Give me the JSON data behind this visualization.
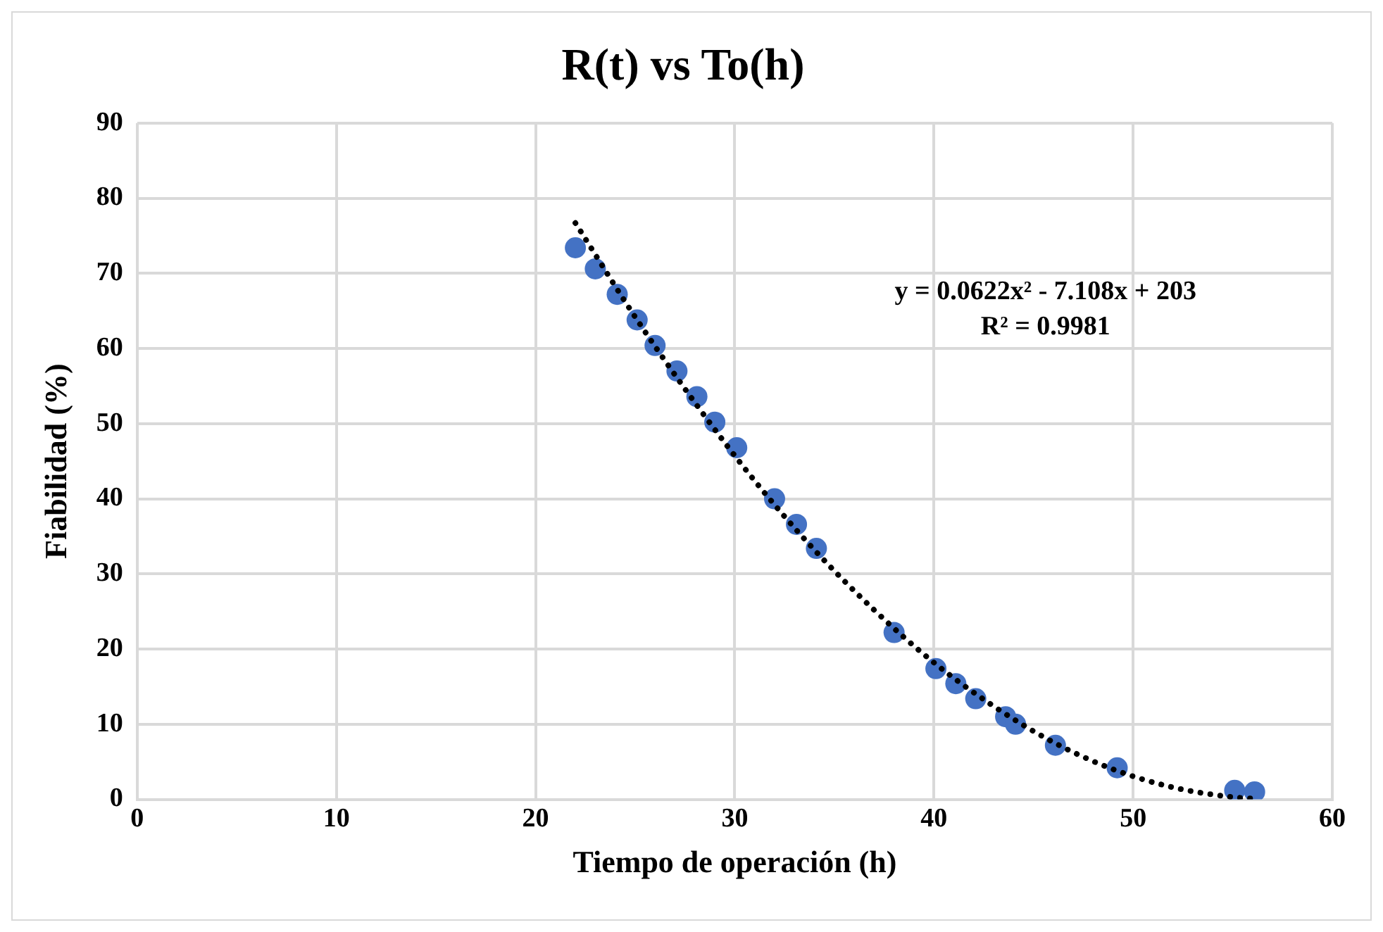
{
  "chart_data": {
    "type": "scatter",
    "title": "R(t) vs To(h)",
    "xlabel": "Tiempo de operación (h)",
    "ylabel": "Fiabilidad (%)",
    "series": [
      {
        "color": "#4472c4",
        "marker": "circle",
        "x": [
          22,
          23,
          24.1,
          25.1,
          26,
          27.1,
          28.1,
          29,
          30.1,
          32,
          33.1,
          34.1,
          38,
          40.1,
          41.1,
          42.1,
          43.6,
          44.1,
          46.1,
          49.2,
          55.1,
          56.1
        ],
        "values": [
          73.4,
          70.6,
          67.2,
          63.8,
          60.4,
          57,
          53.6,
          50.2,
          46.8,
          40,
          36.6,
          33.4,
          22.2,
          17.4,
          15.4,
          13.4,
          11,
          10,
          7.2,
          4.2,
          1.2,
          1
        ]
      },
      {
        "type": "line",
        "color": "#000000",
        "marker": "none",
        "line_style": "dotted",
        "x": [
          22,
          25,
          28,
          31,
          34,
          37,
          40,
          43,
          46,
          49,
          52,
          55,
          56
        ],
        "values": [
          76.7,
          64.2,
          52.8,
          42.4,
          33.2,
          25.2,
          18.2,
          12.4,
          7.6,
          4,
          1.6,
          0.3,
          0.1
        ]
      }
    ],
    "annotations": [
      "y = 0.0622x² - 7.108x + 203",
      "R² = 0.9981"
    ],
    "xlim": [
      0,
      60
    ],
    "xticks": [
      0,
      10,
      20,
      30,
      40,
      50,
      60
    ],
    "ylim": [
      0,
      90
    ],
    "yticks": [
      0,
      10,
      20,
      30,
      40,
      50,
      60,
      70,
      80,
      90
    ],
    "grid": true,
    "legend": false
  }
}
